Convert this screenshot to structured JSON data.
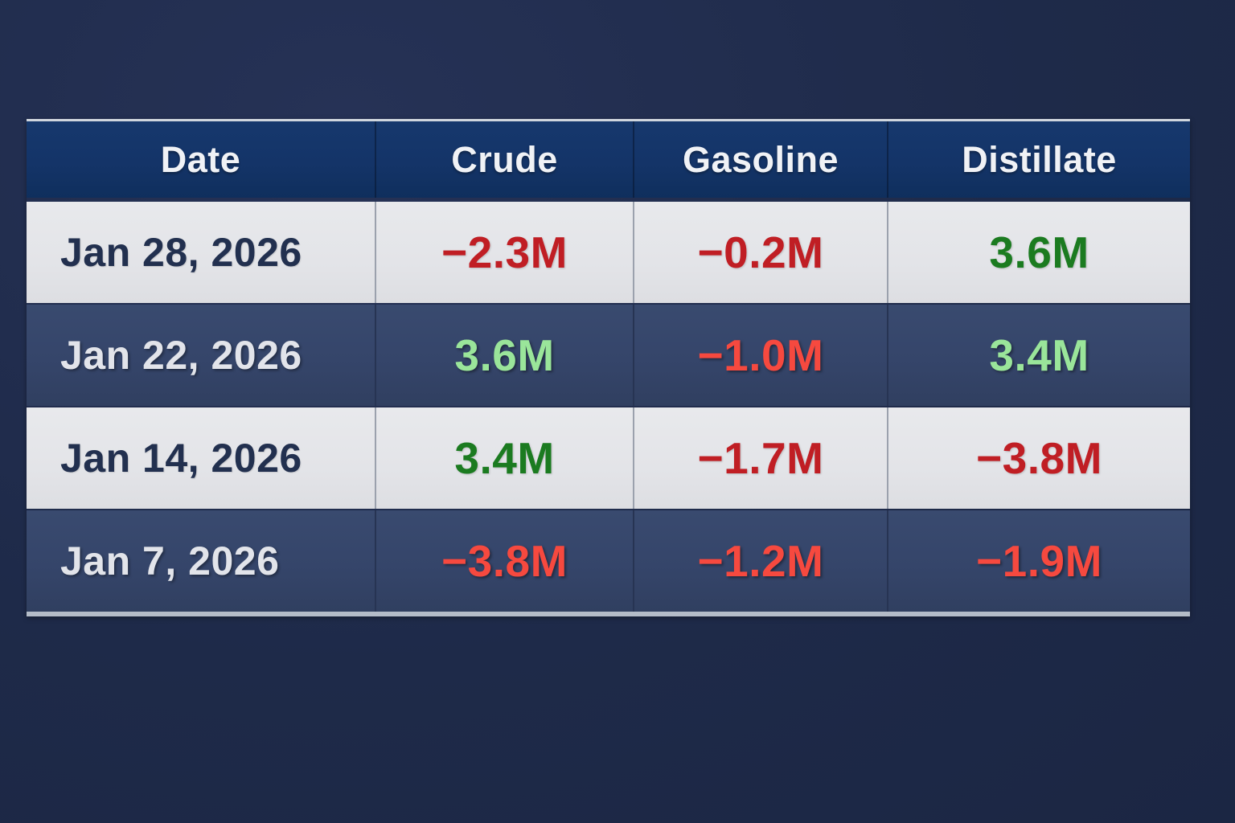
{
  "table": {
    "columns": [
      {
        "label": "Date"
      },
      {
        "label": "Crude"
      },
      {
        "label": "Gasoline"
      },
      {
        "label": "Distillate"
      }
    ],
    "rows": [
      {
        "date": "Jan 28, 2026",
        "crude": {
          "text": "−2.3M",
          "direction": "down"
        },
        "gasoline": {
          "text": "−0.2M",
          "direction": "down"
        },
        "distillate": {
          "text": "3.6M",
          "direction": "up"
        }
      },
      {
        "date": "Jan 22, 2026",
        "crude": {
          "text": "3.6M",
          "direction": "up"
        },
        "gasoline": {
          "text": "−1.0M",
          "direction": "down"
        },
        "distillate": {
          "text": "3.4M",
          "direction": "up"
        }
      },
      {
        "date": "Jan 14, 2026",
        "crude": {
          "text": "3.4M",
          "direction": "up"
        },
        "gasoline": {
          "text": "−1.7M",
          "direction": "down"
        },
        "distillate": {
          "text": "−3.8M",
          "direction": "down"
        }
      },
      {
        "date": "Jan 7, 2026",
        "crude": {
          "text": "−3.8M",
          "direction": "down"
        },
        "gasoline": {
          "text": "−1.2M",
          "direction": "down"
        },
        "distillate": {
          "text": "−1.9M",
          "direction": "down"
        }
      }
    ]
  },
  "colors": {
    "page_background": "#1e2a49",
    "header_background": "#143468",
    "header_text": "#f0f2f6",
    "light_row_background": "#e3e4e8",
    "dark_row_background": "#35456a",
    "date_text_light_row": "#22304f",
    "date_text_dark_row": "#e2e4ea",
    "negative_on_light": "#c01e24",
    "positive_on_light": "#1b7b20",
    "negative_on_dark": "#f6493f",
    "positive_on_dark": "#9ae59a",
    "top_border": "#d0d6de",
    "bottom_border": "#b4bcc8"
  },
  "chart_data": {
    "type": "table",
    "columns": [
      "Date",
      "Crude",
      "Gasoline",
      "Distillate"
    ],
    "unit_suffix": "M",
    "rows": [
      {
        "date": "Jan 28, 2026",
        "crude": -2.3,
        "gasoline": -0.2,
        "distillate": 3.6
      },
      {
        "date": "Jan 22, 2026",
        "crude": 3.6,
        "gasoline": -1.0,
        "distillate": 3.4
      },
      {
        "date": "Jan 14, 2026",
        "crude": 3.4,
        "gasoline": -1.7,
        "distillate": -3.8
      },
      {
        "date": "Jan 7, 2026",
        "crude": -3.8,
        "gasoline": -1.2,
        "distillate": -1.9
      }
    ]
  }
}
